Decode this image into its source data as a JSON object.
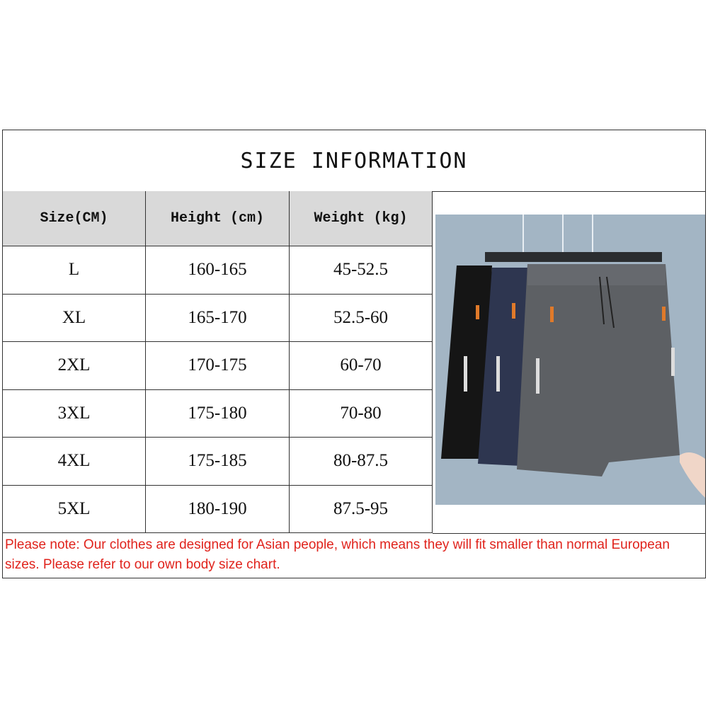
{
  "title": "SIZE INFORMATION",
  "table": {
    "headers": [
      "Size(CM)",
      "Height (cm)",
      "Weight (kg)"
    ],
    "rows": [
      [
        "L",
        "160-165",
        "45-52.5"
      ],
      [
        "XL",
        "165-170",
        "52.5-60"
      ],
      [
        "2XL",
        "170-175",
        "60-70"
      ],
      [
        "3XL",
        "175-180",
        "70-80"
      ],
      [
        "4XL",
        "175-185",
        "80-87.5"
      ],
      [
        "5XL",
        "180-190",
        "87.5-95"
      ]
    ]
  },
  "note": "Please note: Our clothes are designed for Asian people, which means they will fit smaller than normal European sizes. Please refer to our own body size chart.",
  "colors": {
    "note": "#e0231c",
    "header_bg": "#d9d9d9",
    "photo_bg": "#a3b5c4"
  }
}
